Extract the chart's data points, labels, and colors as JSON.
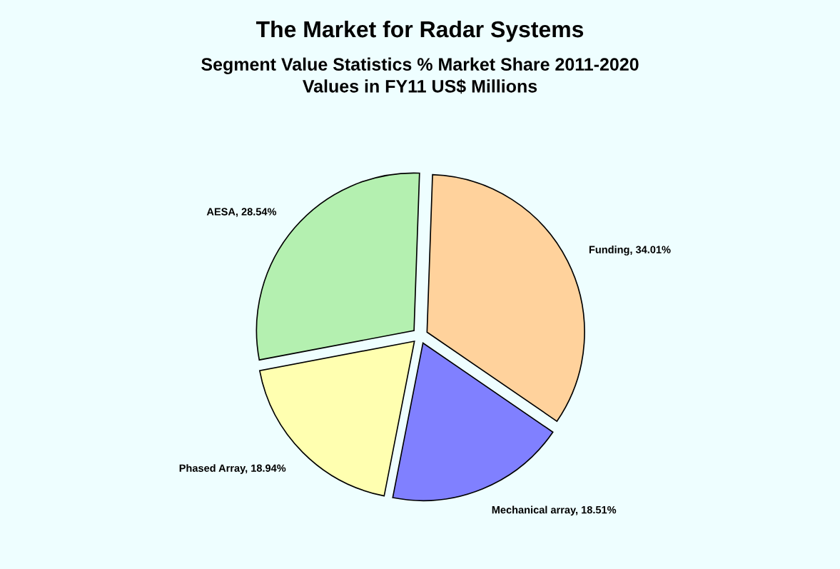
{
  "chart_data": {
    "type": "pie",
    "title": "The Market for Radar Systems",
    "subtitle": "Segment Value Statistics % Market Share 2011-2020\nValues in FY11 US$ Millions",
    "categories": [
      "Funding, 34.01%",
      "Mechanical array, 18.51%",
      "Phased Array, 18.94%",
      "AESA, 28.54%"
    ],
    "values": [
      34.01,
      18.51,
      18.94,
      28.54
    ],
    "colors": [
      "#ffd29c",
      "#8080ff",
      "#ffffb0",
      "#b4f0b0"
    ],
    "legend": false
  }
}
